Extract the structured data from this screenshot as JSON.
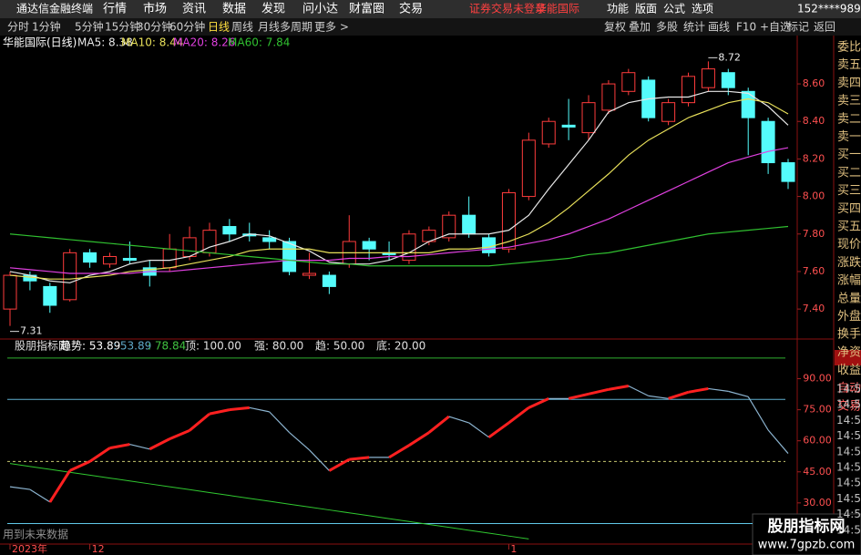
{
  "menu": {
    "app": "通达信金融终端",
    "items": [
      "行情",
      "市场",
      "资讯",
      "数据",
      "发现",
      "问小达",
      "财富圈",
      "交易"
    ],
    "status": "证券交易未登录",
    "stock": "华能国际",
    "right_items": [
      "功能",
      "版面",
      "公式",
      "选项"
    ],
    "account": "152****9892"
  },
  "toolbar": {
    "periods": [
      "分时",
      "1分钟",
      "5分钟",
      "15分钟",
      "30分钟",
      "60分钟",
      "日线",
      "周线",
      "月线",
      "多周期",
      "更多 >"
    ],
    "tools": [
      "复权",
      "叠加",
      "多股",
      "统计",
      "画线",
      "F10",
      "+自选",
      "标记",
      "返回"
    ]
  },
  "side_panel": {
    "labels": [
      "委比",
      "卖五",
      "卖四",
      "卖三",
      "卖二",
      "卖一",
      "买一",
      "买二",
      "买三",
      "买四",
      "买五",
      "现价",
      "涨跌",
      "涨幅",
      "总量",
      "外盘",
      "换手",
      "净资",
      "收益",
      "自动",
      "交易"
    ],
    "times": [
      "14:56",
      "14:56",
      "14:56",
      "14:56",
      "14:56",
      "14:56",
      "14:56",
      "14:56",
      "14:56",
      "14:56"
    ]
  },
  "footer_note": "用到未来数据",
  "watermark": {
    "title": "股朋指标网",
    "url": "www.7gpzb.com"
  },
  "chart_data": [
    {
      "type": "candlestick",
      "title": "华能国际(日线)",
      "categories": [
        "2023年",
        null,
        null,
        null,
        "12",
        null,
        null,
        null,
        null,
        null,
        null,
        null,
        null,
        null,
        null,
        null,
        null,
        null,
        null,
        null,
        null,
        null,
        null,
        null,
        null,
        "1",
        null,
        null,
        null,
        null,
        null,
        null,
        null,
        null,
        null,
        null,
        null,
        null,
        null,
        null
      ],
      "open": [
        7.4,
        7.58,
        7.52,
        7.45,
        7.7,
        7.64,
        7.67,
        7.62,
        7.62,
        7.68,
        7.7,
        7.84,
        7.8,
        7.78,
        7.76,
        7.58,
        7.58,
        7.64,
        7.76,
        7.7,
        7.66,
        7.76,
        7.78,
        7.9,
        7.78,
        7.72,
        8.0,
        8.28,
        8.38,
        8.34,
        8.46,
        8.56,
        8.62,
        8.4,
        8.5,
        8.58,
        8.66,
        8.56,
        8.4,
        8.18
      ],
      "high": [
        7.6,
        7.6,
        7.54,
        7.72,
        7.72,
        7.7,
        7.76,
        7.66,
        7.8,
        7.84,
        7.86,
        7.88,
        7.86,
        7.82,
        7.78,
        7.7,
        7.6,
        7.9,
        7.78,
        7.76,
        7.82,
        7.84,
        7.92,
        8.0,
        7.8,
        8.04,
        8.34,
        8.42,
        8.52,
        8.54,
        8.62,
        8.68,
        8.64,
        8.52,
        8.66,
        8.72,
        8.68,
        8.58,
        8.42,
        8.2
      ],
      "low": [
        7.31,
        7.5,
        7.38,
        7.44,
        7.62,
        7.62,
        7.64,
        7.52,
        7.6,
        7.66,
        7.68,
        7.76,
        7.76,
        7.72,
        7.58,
        7.56,
        7.48,
        7.62,
        7.66,
        7.66,
        7.64,
        7.74,
        7.76,
        7.78,
        7.68,
        7.7,
        7.98,
        8.26,
        8.3,
        8.3,
        8.44,
        8.54,
        8.4,
        8.38,
        8.48,
        8.56,
        8.54,
        8.22,
        8.12,
        8.04
      ],
      "close": [
        7.58,
        7.55,
        7.42,
        7.7,
        7.65,
        7.68,
        7.66,
        7.58,
        7.72,
        7.78,
        7.82,
        7.8,
        7.79,
        7.76,
        7.6,
        7.59,
        7.52,
        7.76,
        7.72,
        7.69,
        7.8,
        7.82,
        7.9,
        7.8,
        7.7,
        8.02,
        8.3,
        8.4,
        8.37,
        8.5,
        8.6,
        8.66,
        8.42,
        8.5,
        8.64,
        8.68,
        8.58,
        8.42,
        8.18,
        8.08
      ],
      "up_color": "#ff3c3c",
      "down_color": "#54fcfc",
      "series": [
        {
          "label": "MA5: 8.38",
          "color": "#e8e8e8",
          "values": [
            7.6,
            7.58,
            7.55,
            7.54,
            7.58,
            7.6,
            7.64,
            7.66,
            7.66,
            7.68,
            7.73,
            7.76,
            7.8,
            7.79,
            7.75,
            7.71,
            7.65,
            7.64,
            7.64,
            7.66,
            7.7,
            7.76,
            7.8,
            7.8,
            7.8,
            7.82,
            7.9,
            8.04,
            8.17,
            8.3,
            8.45,
            8.5,
            8.52,
            8.53,
            8.53,
            8.56,
            8.56,
            8.55,
            8.48,
            8.38
          ]
        },
        {
          "label": "MA10: 8.44",
          "color": "#e8e05a",
          "values": [
            7.58,
            7.57,
            7.56,
            7.56,
            7.57,
            7.58,
            7.6,
            7.61,
            7.62,
            7.64,
            7.66,
            7.68,
            7.71,
            7.72,
            7.72,
            7.72,
            7.7,
            7.7,
            7.7,
            7.7,
            7.7,
            7.7,
            7.72,
            7.72,
            7.73,
            7.76,
            7.8,
            7.86,
            7.94,
            8.03,
            8.12,
            8.22,
            8.3,
            8.36,
            8.42,
            8.46,
            8.5,
            8.52,
            8.5,
            8.44
          ]
        },
        {
          "label": "MA20: 8.26",
          "color": "#e040e0",
          "values": [
            7.62,
            7.61,
            7.6,
            7.59,
            7.59,
            7.59,
            7.59,
            7.6,
            7.6,
            7.61,
            7.62,
            7.63,
            7.64,
            7.65,
            7.66,
            7.66,
            7.66,
            7.67,
            7.67,
            7.68,
            7.68,
            7.69,
            7.7,
            7.71,
            7.72,
            7.73,
            7.75,
            7.77,
            7.8,
            7.84,
            7.88,
            7.93,
            7.98,
            8.03,
            8.08,
            8.13,
            8.18,
            8.21,
            8.24,
            8.26
          ]
        },
        {
          "label": "MA60: 7.84",
          "color": "#30c030",
          "values": [
            7.8,
            7.79,
            7.78,
            7.77,
            7.76,
            7.75,
            7.74,
            7.73,
            7.72,
            7.71,
            7.7,
            7.69,
            7.68,
            7.67,
            7.66,
            7.65,
            7.64,
            7.64,
            7.63,
            7.63,
            7.63,
            7.63,
            7.63,
            7.63,
            7.63,
            7.64,
            7.65,
            7.66,
            7.67,
            7.69,
            7.7,
            7.72,
            7.74,
            7.76,
            7.78,
            7.8,
            7.81,
            7.82,
            7.83,
            7.84
          ]
        }
      ],
      "annotations": [
        {
          "index": 35,
          "value": 8.72,
          "label": "8.72"
        },
        {
          "index": 0,
          "value": 7.31,
          "label": "7.31"
        }
      ],
      "ylim": [
        7.25,
        8.78
      ],
      "yticks": [
        {
          "value": 7.4,
          "label": "7.40"
        },
        {
          "value": 7.6,
          "label": "7.60"
        },
        {
          "value": 7.8,
          "label": "7.80"
        },
        {
          "value": 8.0,
          "label": "8.00"
        },
        {
          "value": 8.2,
          "label": "8.20"
        },
        {
          "value": 8.4,
          "label": "8.40"
        },
        {
          "value": 8.6,
          "label": "8.60"
        }
      ]
    },
    {
      "type": "indicator",
      "title": "股朋指标网",
      "header": [
        {
          "text": "趋势: 53.89",
          "color": "#ffffff"
        },
        {
          "text": ": 53.89",
          "color": "#5fa8c8"
        },
        {
          "text": ": 78.84",
          "color": "#40c040"
        }
      ],
      "series": [
        {
          "color_up": "#ff2020",
          "color_down": "#8cb4d0",
          "values": [
            37.8,
            36.5,
            30.4,
            45.6,
            50,
            56.5,
            58.3,
            56,
            60.9,
            65,
            73,
            75,
            76,
            74,
            64,
            55.6,
            45.6,
            51,
            52,
            52,
            57.8,
            64,
            71.7,
            68.7,
            61.7,
            68.7,
            76,
            80.4,
            80.4,
            82.6,
            84.8,
            86.5,
            81.7,
            80.4,
            83.5,
            85.2,
            83.9,
            81.3,
            65.2,
            53.89
          ]
        },
        {
          "color": "#30c830",
          "values": [
            49,
            47.6,
            46.2,
            44.8,
            43.4,
            42,
            40.6,
            39.2,
            37.8,
            36.4,
            35,
            33.6,
            32.2,
            30.8,
            29.4,
            28,
            26.6,
            25.2,
            23.8,
            22.4,
            21,
            19.6,
            18.2,
            16.8,
            15.4,
            14,
            12.6,
            null,
            null,
            null,
            null,
            null,
            null,
            null,
            null,
            null,
            null,
            null,
            null,
            null
          ]
        }
      ],
      "reference_lines": [
        {
          "value": 100,
          "label": "顶: 100.00",
          "color": "#30b030"
        },
        {
          "value": 80,
          "label": "强: 80.00",
          "color": "#60b0d0"
        },
        {
          "value": 50,
          "label": "趋: 50.00",
          "color": "#c8c870",
          "dashed": true
        },
        {
          "value": 20,
          "label": "底: 20.00",
          "color": "#60c8e8"
        }
      ],
      "ylim": [
        11,
        103
      ],
      "yticks": [
        {
          "value": 30,
          "label": "30.00"
        },
        {
          "value": 45,
          "label": "45.00"
        },
        {
          "value": 60,
          "label": "60.00"
        },
        {
          "value": 75,
          "label": "75.00"
        },
        {
          "value": 90,
          "label": "90.00"
        }
      ]
    }
  ]
}
